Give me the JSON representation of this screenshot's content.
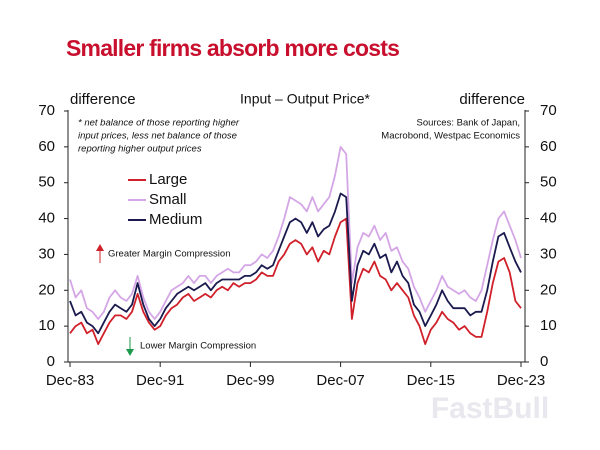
{
  "chart_data": {
    "type": "line",
    "title": "Smaller firms absorb more costs",
    "subtitle": "Input – Output Price*",
    "y_label": "difference",
    "y2_label": "difference",
    "note": [
      "* net balance of those reporting higher",
      "input prices, less net balance of those",
      "reporting higher output prices"
    ],
    "source": [
      "Sources: Bank of Japan,",
      "Macrobond, Westpac Economics"
    ],
    "annotations": [
      {
        "text": "Greater Margin Compression",
        "color": "#d0202a"
      },
      {
        "text": "Lower Margin Compression",
        "color": "#1a9a4a"
      }
    ],
    "watermark": "FastBull",
    "categories": [
      "Dec-83",
      null,
      null,
      null,
      null,
      null,
      null,
      null,
      null,
      null,
      null,
      null,
      null,
      null,
      null,
      null,
      "Dec-91",
      null,
      null,
      null,
      null,
      null,
      null,
      null,
      null,
      null,
      null,
      null,
      null,
      null,
      null,
      null,
      "Dec-99",
      null,
      null,
      null,
      null,
      null,
      null,
      null,
      null,
      null,
      null,
      null,
      null,
      null,
      null,
      null,
      "Dec-07",
      null,
      null,
      null,
      null,
      null,
      null,
      null,
      null,
      null,
      null,
      null,
      null,
      null,
      null,
      null,
      "Dec-15",
      null,
      null,
      null,
      null,
      null,
      null,
      null,
      null,
      null,
      null,
      null,
      null,
      null,
      null,
      null,
      "Dec-23"
    ],
    "series": [
      {
        "name": "Large",
        "color": "#d0202a",
        "values": [
          8,
          10,
          11,
          8,
          9,
          5,
          8,
          11,
          13,
          13,
          12,
          14,
          19,
          14,
          11,
          9,
          10,
          13,
          15,
          16,
          18,
          19,
          17,
          18,
          19,
          18,
          20,
          21,
          20,
          22,
          21,
          22,
          22,
          23,
          25,
          24,
          24,
          28,
          30,
          33,
          34,
          33,
          30,
          32,
          28,
          31,
          30,
          35,
          39,
          40,
          12,
          22,
          26,
          25,
          28,
          24,
          23,
          20,
          22,
          20,
          18,
          13,
          10,
          5,
          9,
          11,
          14,
          12,
          11,
          9,
          10,
          8,
          7,
          7,
          14,
          22,
          28,
          29,
          25,
          17,
          15
        ]
      },
      {
        "name": "Small",
        "color": "#d4a6e6",
        "values": [
          23,
          18,
          20,
          15,
          14,
          12,
          14,
          18,
          20,
          18,
          17,
          19,
          24,
          18,
          14,
          12,
          14,
          17,
          20,
          21,
          22,
          24,
          22,
          24,
          24,
          22,
          24,
          25,
          26,
          25,
          25,
          27,
          27,
          28,
          30,
          29,
          31,
          35,
          40,
          46,
          45,
          44,
          42,
          46,
          42,
          44,
          46,
          52,
          60,
          58,
          22,
          32,
          36,
          35,
          38,
          34,
          36,
          31,
          32,
          28,
          26,
          21,
          18,
          14,
          17,
          20,
          24,
          21,
          20,
          19,
          20,
          18,
          17,
          20,
          27,
          34,
          40,
          42,
          38,
          34,
          29
        ]
      },
      {
        "name": "Medium",
        "color": "#1a1a4e",
        "values": [
          17,
          13,
          14,
          11,
          10,
          8,
          11,
          14,
          16,
          15,
          14,
          16,
          22,
          16,
          12,
          10,
          12,
          15,
          17,
          19,
          20,
          21,
          20,
          21,
          22,
          20,
          22,
          23,
          23,
          23,
          23,
          24,
          24,
          25,
          27,
          26,
          27,
          31,
          35,
          39,
          40,
          39,
          36,
          39,
          35,
          37,
          38,
          42,
          47,
          46,
          17,
          27,
          31,
          30,
          33,
          29,
          30,
          25,
          28,
          24,
          22,
          16,
          14,
          10,
          13,
          16,
          20,
          17,
          15,
          15,
          15,
          13,
          14,
          14,
          20,
          28,
          35,
          36,
          32,
          28,
          25
        ]
      }
    ],
    "ylim": [
      0,
      70
    ],
    "yticks": [
      0,
      10,
      20,
      30,
      40,
      50,
      60,
      70
    ],
    "y2lim": [
      0,
      70
    ],
    "y2ticks": [
      0,
      10,
      20,
      30,
      40,
      50,
      60,
      70
    ],
    "legend": "upper-left",
    "grid": false
  }
}
